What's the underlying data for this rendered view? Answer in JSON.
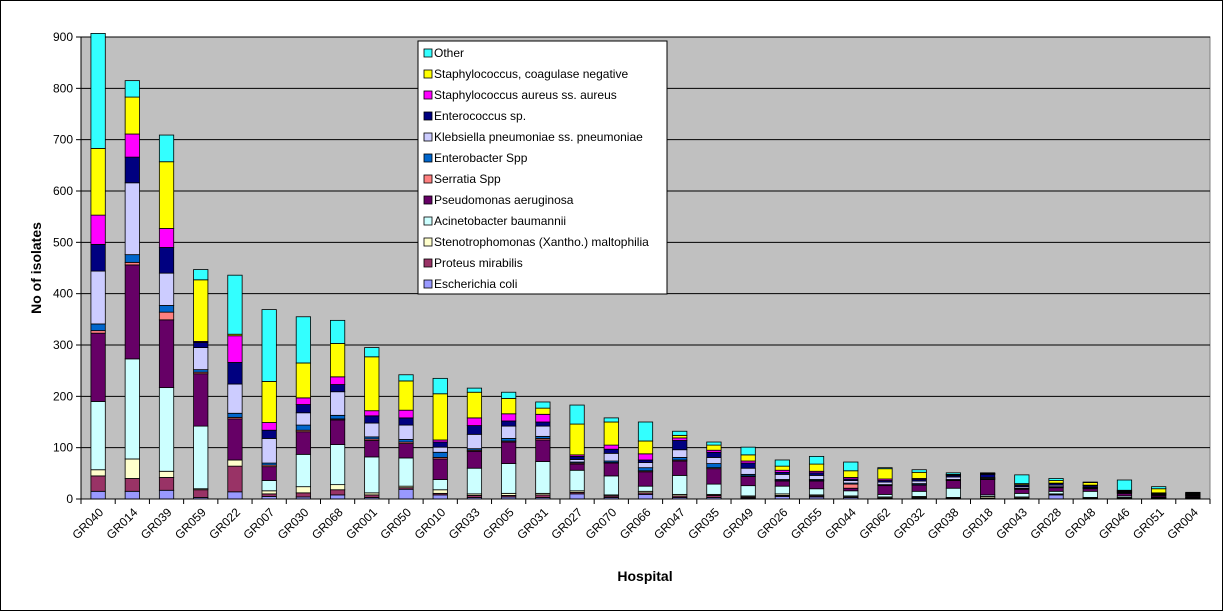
{
  "chart_data": {
    "type": "bar",
    "stacked": true,
    "xlabel": "Hospital",
    "ylabel": "No of isolates",
    "ylim": [
      0,
      900
    ],
    "yticks": [
      0,
      100,
      200,
      300,
      400,
      500,
      600,
      700,
      800,
      900
    ],
    "grid": true,
    "legend_position": "top-center",
    "plot_background": "#c0c0c0",
    "categories": [
      "GR040",
      "GR014",
      "GR039",
      "GR059",
      "GR022",
      "GR007",
      "GR030",
      "GR068",
      "GR001",
      "GR050",
      "GR010",
      "GR033",
      "GR005",
      "GR031",
      "GR027",
      "GR070",
      "GR066",
      "GR047",
      "GR035",
      "GR049",
      "GR026",
      "GR055",
      "GR044",
      "GR062",
      "GR032",
      "GR038",
      "GR018",
      "GR043",
      "GR028",
      "GR048",
      "GR046",
      "GR051",
      "GR004"
    ],
    "series": [
      {
        "name": "Escherichia coli",
        "color": "#9999ff",
        "values": [
          15,
          15,
          17,
          3,
          14,
          5,
          4,
          8,
          3,
          19,
          8,
          3,
          4,
          3,
          10,
          3,
          9,
          3,
          3,
          2,
          5,
          4,
          3,
          1,
          2,
          1,
          1,
          1,
          8,
          1,
          1,
          1,
          1
        ]
      },
      {
        "name": "Proteus mirabilis",
        "color": "#993366",
        "values": [
          30,
          25,
          25,
          15,
          50,
          5,
          8,
          10,
          5,
          3,
          3,
          4,
          3,
          5,
          3,
          3,
          3,
          3,
          4,
          2,
          2,
          2,
          1,
          1,
          1,
          1,
          1,
          1,
          1,
          1,
          1,
          1,
          1
        ]
      },
      {
        "name": "Stenotrophomonas (Xantho.) maltophilia",
        "color": "#ffffcc",
        "values": [
          12,
          38,
          12,
          2,
          12,
          6,
          12,
          10,
          4,
          3,
          7,
          3,
          4,
          3,
          3,
          2,
          3,
          3,
          2,
          2,
          3,
          2,
          2,
          2,
          2,
          1,
          3,
          2,
          1,
          1,
          1,
          1,
          1
        ]
      },
      {
        "name": "Acinetobacter baumannii",
        "color": "#ccffff",
        "values": [
          133,
          195,
          163,
          122,
          0,
          20,
          63,
          78,
          70,
          55,
          20,
          50,
          58,
          62,
          40,
          37,
          10,
          37,
          20,
          20,
          15,
          12,
          10,
          5,
          10,
          18,
          3,
          7,
          5,
          12,
          3,
          1,
          1
        ]
      },
      {
        "name": "Pseudomonas aeruginosa",
        "color": "#660066",
        "values": [
          133,
          183,
          132,
          102,
          80,
          27,
          44,
          48,
          32,
          28,
          40,
          33,
          42,
          42,
          12,
          25,
          28,
          28,
          30,
          18,
          10,
          15,
          5,
          17,
          12,
          15,
          30,
          8,
          7,
          5,
          5,
          3,
          2
        ]
      },
      {
        "name": "Serratia Spp",
        "color": "#ff8080",
        "values": [
          5,
          5,
          15,
          3,
          3,
          3,
          3,
          2,
          3,
          3,
          3,
          2,
          2,
          3,
          2,
          1,
          2,
          2,
          2,
          1,
          1,
          1,
          8,
          1,
          1,
          1,
          1,
          1,
          1,
          1,
          1,
          1,
          1
        ]
      },
      {
        "name": "Enterobacter Spp",
        "color": "#0066cc",
        "values": [
          13,
          15,
          13,
          5,
          8,
          4,
          10,
          7,
          4,
          5,
          10,
          3,
          5,
          4,
          2,
          3,
          6,
          5,
          8,
          3,
          2,
          2,
          2,
          1,
          2,
          1,
          1,
          1,
          1,
          1,
          1,
          1,
          1
        ]
      },
      {
        "name": "Klebsiella pneumoniae ss. pneumoniae",
        "color": "#ccccff",
        "values": [
          103,
          140,
          63,
          43,
          57,
          48,
          24,
          46,
          27,
          28,
          10,
          28,
          24,
          20,
          5,
          15,
          10,
          15,
          12,
          12,
          10,
          8,
          5,
          5,
          5,
          5,
          2,
          3,
          3,
          1,
          1,
          1,
          1
        ]
      },
      {
        "name": "Enterococcus sp.",
        "color": "#000080",
        "values": [
          52,
          50,
          50,
          10,
          42,
          16,
          16,
          14,
          14,
          14,
          10,
          17,
          10,
          8,
          6,
          8,
          5,
          18,
          10,
          10,
          4,
          5,
          3,
          3,
          3,
          3,
          6,
          3,
          3,
          3,
          1,
          1,
          1
        ]
      },
      {
        "name": "Staphylococcus aureus ss. aureus",
        "color": "#ff00ff",
        "values": [
          57,
          45,
          37,
          2,
          52,
          15,
          13,
          15,
          10,
          15,
          4,
          15,
          14,
          15,
          3,
          8,
          12,
          5,
          4,
          4,
          4,
          3,
          3,
          3,
          2,
          1,
          1,
          1,
          1,
          1,
          1,
          1,
          1
        ]
      },
      {
        "name": "Staphylococcus, coagulase negative",
        "color": "#ffff00",
        "values": [
          130,
          72,
          130,
          120,
          3,
          80,
          68,
          65,
          105,
          57,
          90,
          50,
          30,
          12,
          60,
          45,
          25,
          5,
          10,
          12,
          8,
          14,
          13,
          20,
          12,
          1,
          1,
          2,
          5,
          5,
          1,
          8,
          1
        ]
      },
      {
        "name": "Other",
        "color": "#33ffff",
        "values": [
          224,
          32,
          52,
          20,
          115,
          140,
          90,
          45,
          18,
          12,
          30,
          8,
          12,
          12,
          37,
          8,
          37,
          8,
          6,
          15,
          12,
          15,
          17,
          2,
          5,
          3,
          1,
          17,
          4,
          1,
          20,
          4,
          1
        ]
      }
    ]
  }
}
